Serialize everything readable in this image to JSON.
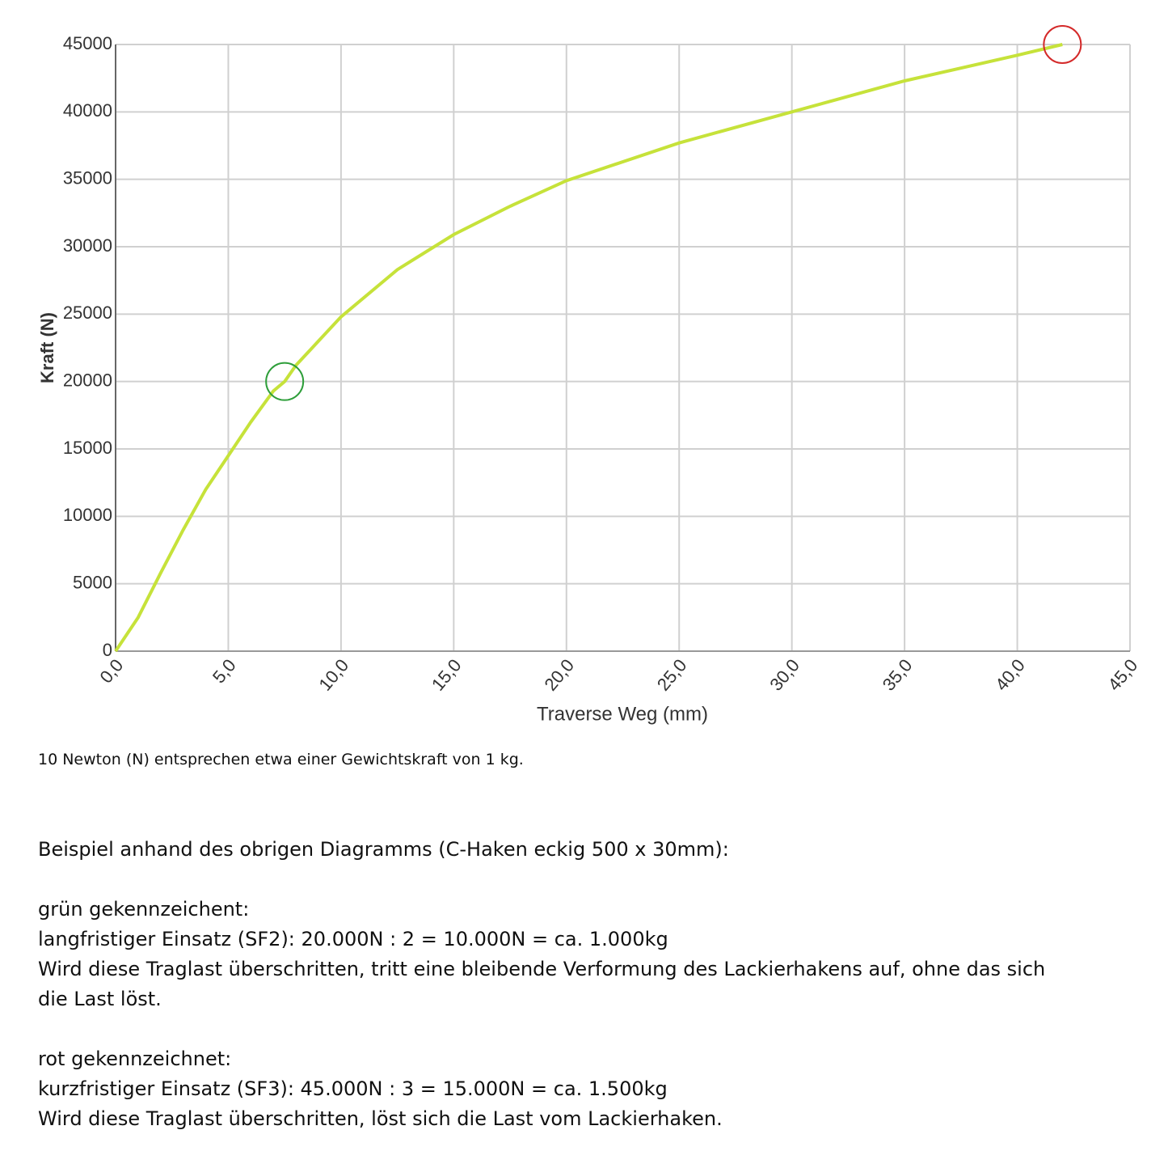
{
  "chart_data": {
    "type": "line",
    "x_label": "Traverse Weg (mm)",
    "y_label": "Kraft (N)",
    "x": [
      0,
      1,
      2,
      3,
      4,
      5,
      6,
      7,
      7.5,
      8,
      9,
      10,
      12.5,
      15,
      17.5,
      20,
      25,
      30,
      35,
      40,
      42
    ],
    "series": [
      {
        "color": "#c6e23a",
        "values": [
          0,
          2500,
          5800,
          9000,
          12000,
          14500,
          17000,
          19300,
          20000,
          21200,
          23000,
          24800,
          28300,
          30900,
          33000,
          34900,
          37700,
          40000,
          42300,
          44200,
          45000
        ]
      }
    ],
    "markers": [
      {
        "x": 7.5,
        "y": 20000,
        "color": "#2e9e3a"
      },
      {
        "x": 42,
        "y": 45000,
        "color": "#d42a2a"
      }
    ],
    "xlim": [
      0,
      45
    ],
    "ylim": [
      0,
      45000
    ],
    "xticks": [
      {
        "value": 0,
        "label": "0,0"
      },
      {
        "value": 5,
        "label": "5,0"
      },
      {
        "value": 10,
        "label": "10,0"
      },
      {
        "value": 15,
        "label": "15,0"
      },
      {
        "value": 20,
        "label": "20,0"
      },
      {
        "value": 25,
        "label": "25,0"
      },
      {
        "value": 30,
        "label": "30,0"
      },
      {
        "value": 35,
        "label": "35,0"
      },
      {
        "value": 40,
        "label": "40,0"
      },
      {
        "value": 45,
        "label": "45,0"
      }
    ],
    "yticks": [
      0,
      5000,
      10000,
      15000,
      20000,
      25000,
      30000,
      35000,
      40000,
      45000
    ],
    "grid": true
  },
  "caption": "10 Newton (N) entsprechen etwa einer Gewichtskraft von 1 kg.",
  "notes": {
    "heading": "Beispiel anhand des obrigen Diagramms (C-Haken eckig 500 x 30mm):",
    "green": {
      "title": "grün gekennzeichent:",
      "line": "langfristiger Einsatz (SF2): 20.000N : 2 = 10.000N = ca. 1.000kg",
      "text": "Wird diese Traglast überschritten, tritt eine bleibende Verformung des Lackierhakens auf, ohne das sich die Last löst."
    },
    "red": {
      "title": "rot gekennzeichnet:",
      "line": "kurzfristiger Einsatz (SF3): 45.000N : 3 = 15.000N = ca. 1.500kg",
      "text": "Wird diese Traglast überschritten, löst sich die Last vom Lackierhaken."
    }
  }
}
